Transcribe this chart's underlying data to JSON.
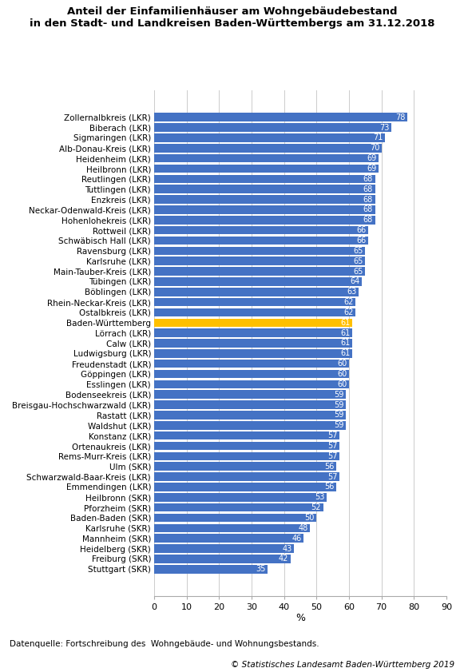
{
  "title": "Anteil der Einfamilienhäuser am Wohngebäudebestand\nin den Stadt- und Landkreisen Baden-Württembergs am 31.12.2018",
  "categories": [
    "Zollernalbkreis (LKR)",
    "Biberach (LKR)",
    "Sigmaringen (LKR)",
    "Alb-Donau-Kreis (LKR)",
    "Heidenheim (LKR)",
    "Heilbronn (LKR)",
    "Reutlingen (LKR)",
    "Tuttlingen (LKR)",
    "Enzkreis (LKR)",
    "Neckar-Odenwald-Kreis (LKR)",
    "Hohenlohekreis (LKR)",
    "Rottweil (LKR)",
    "Schwäbisch Hall (LKR)",
    "Ravensburg (LKR)",
    "Karlsruhe (LKR)",
    "Main-Tauber-Kreis (LKR)",
    "Tübingen (LKR)",
    "Böblingen (LKR)",
    "Rhein-Neckar-Kreis (LKR)",
    "Ostalbkreis (LKR)",
    "Baden-Württemberg",
    "Lörrach (LKR)",
    "Calw (LKR)",
    "Ludwigsburg (LKR)",
    "Freudenstadt (LKR)",
    "Göppingen (LKR)",
    "Esslingen (LKR)",
    "Bodenseekreis (LKR)",
    "Breisgau-Hochschwarzwald (LKR)",
    "Rastatt (LKR)",
    "Waldshut (LKR)",
    "Konstanz (LKR)",
    "Ortenaukreis (LKR)",
    "Rems-Murr-Kreis (LKR)",
    "Ulm (SKR)",
    "Schwarzwald-Baar-Kreis (LKR)",
    "Emmendingen (LKR)",
    "Heilbronn (SKR)",
    "Pforzheim (SKR)",
    "Baden-Baden (SKR)",
    "Karlsruhe (SKR)",
    "Mannheim (SKR)",
    "Heidelberg (SKR)",
    "Freiburg (SKR)",
    "Stuttgart (SKR)"
  ],
  "values": [
    78,
    73,
    71,
    70,
    69,
    69,
    68,
    68,
    68,
    68,
    68,
    66,
    66,
    65,
    65,
    65,
    64,
    63,
    62,
    62,
    61,
    61,
    61,
    61,
    60,
    60,
    60,
    59,
    59,
    59,
    59,
    57,
    57,
    57,
    56,
    57,
    56,
    53,
    52,
    50,
    48,
    46,
    43,
    42,
    35
  ],
  "bar_color_default": "#4472C4",
  "bar_color_highlight": "#FFC000",
  "highlight_index": 20,
  "xlabel": "%",
  "xlim": [
    0,
    90
  ],
  "xticks": [
    0,
    10,
    20,
    30,
    40,
    50,
    60,
    70,
    80,
    90
  ],
  "footnote": "Datenquelle: Fortschreibung des  Wohngebäude- und Wohnungsbestands.",
  "copyright": "© Statistisches Landesamt Baden-Württemberg 2019",
  "background_color": "#ffffff",
  "grid_color": "#cccccc",
  "label_fontsize": 7.5,
  "bar_height": 0.82,
  "value_fontsize": 7.0
}
